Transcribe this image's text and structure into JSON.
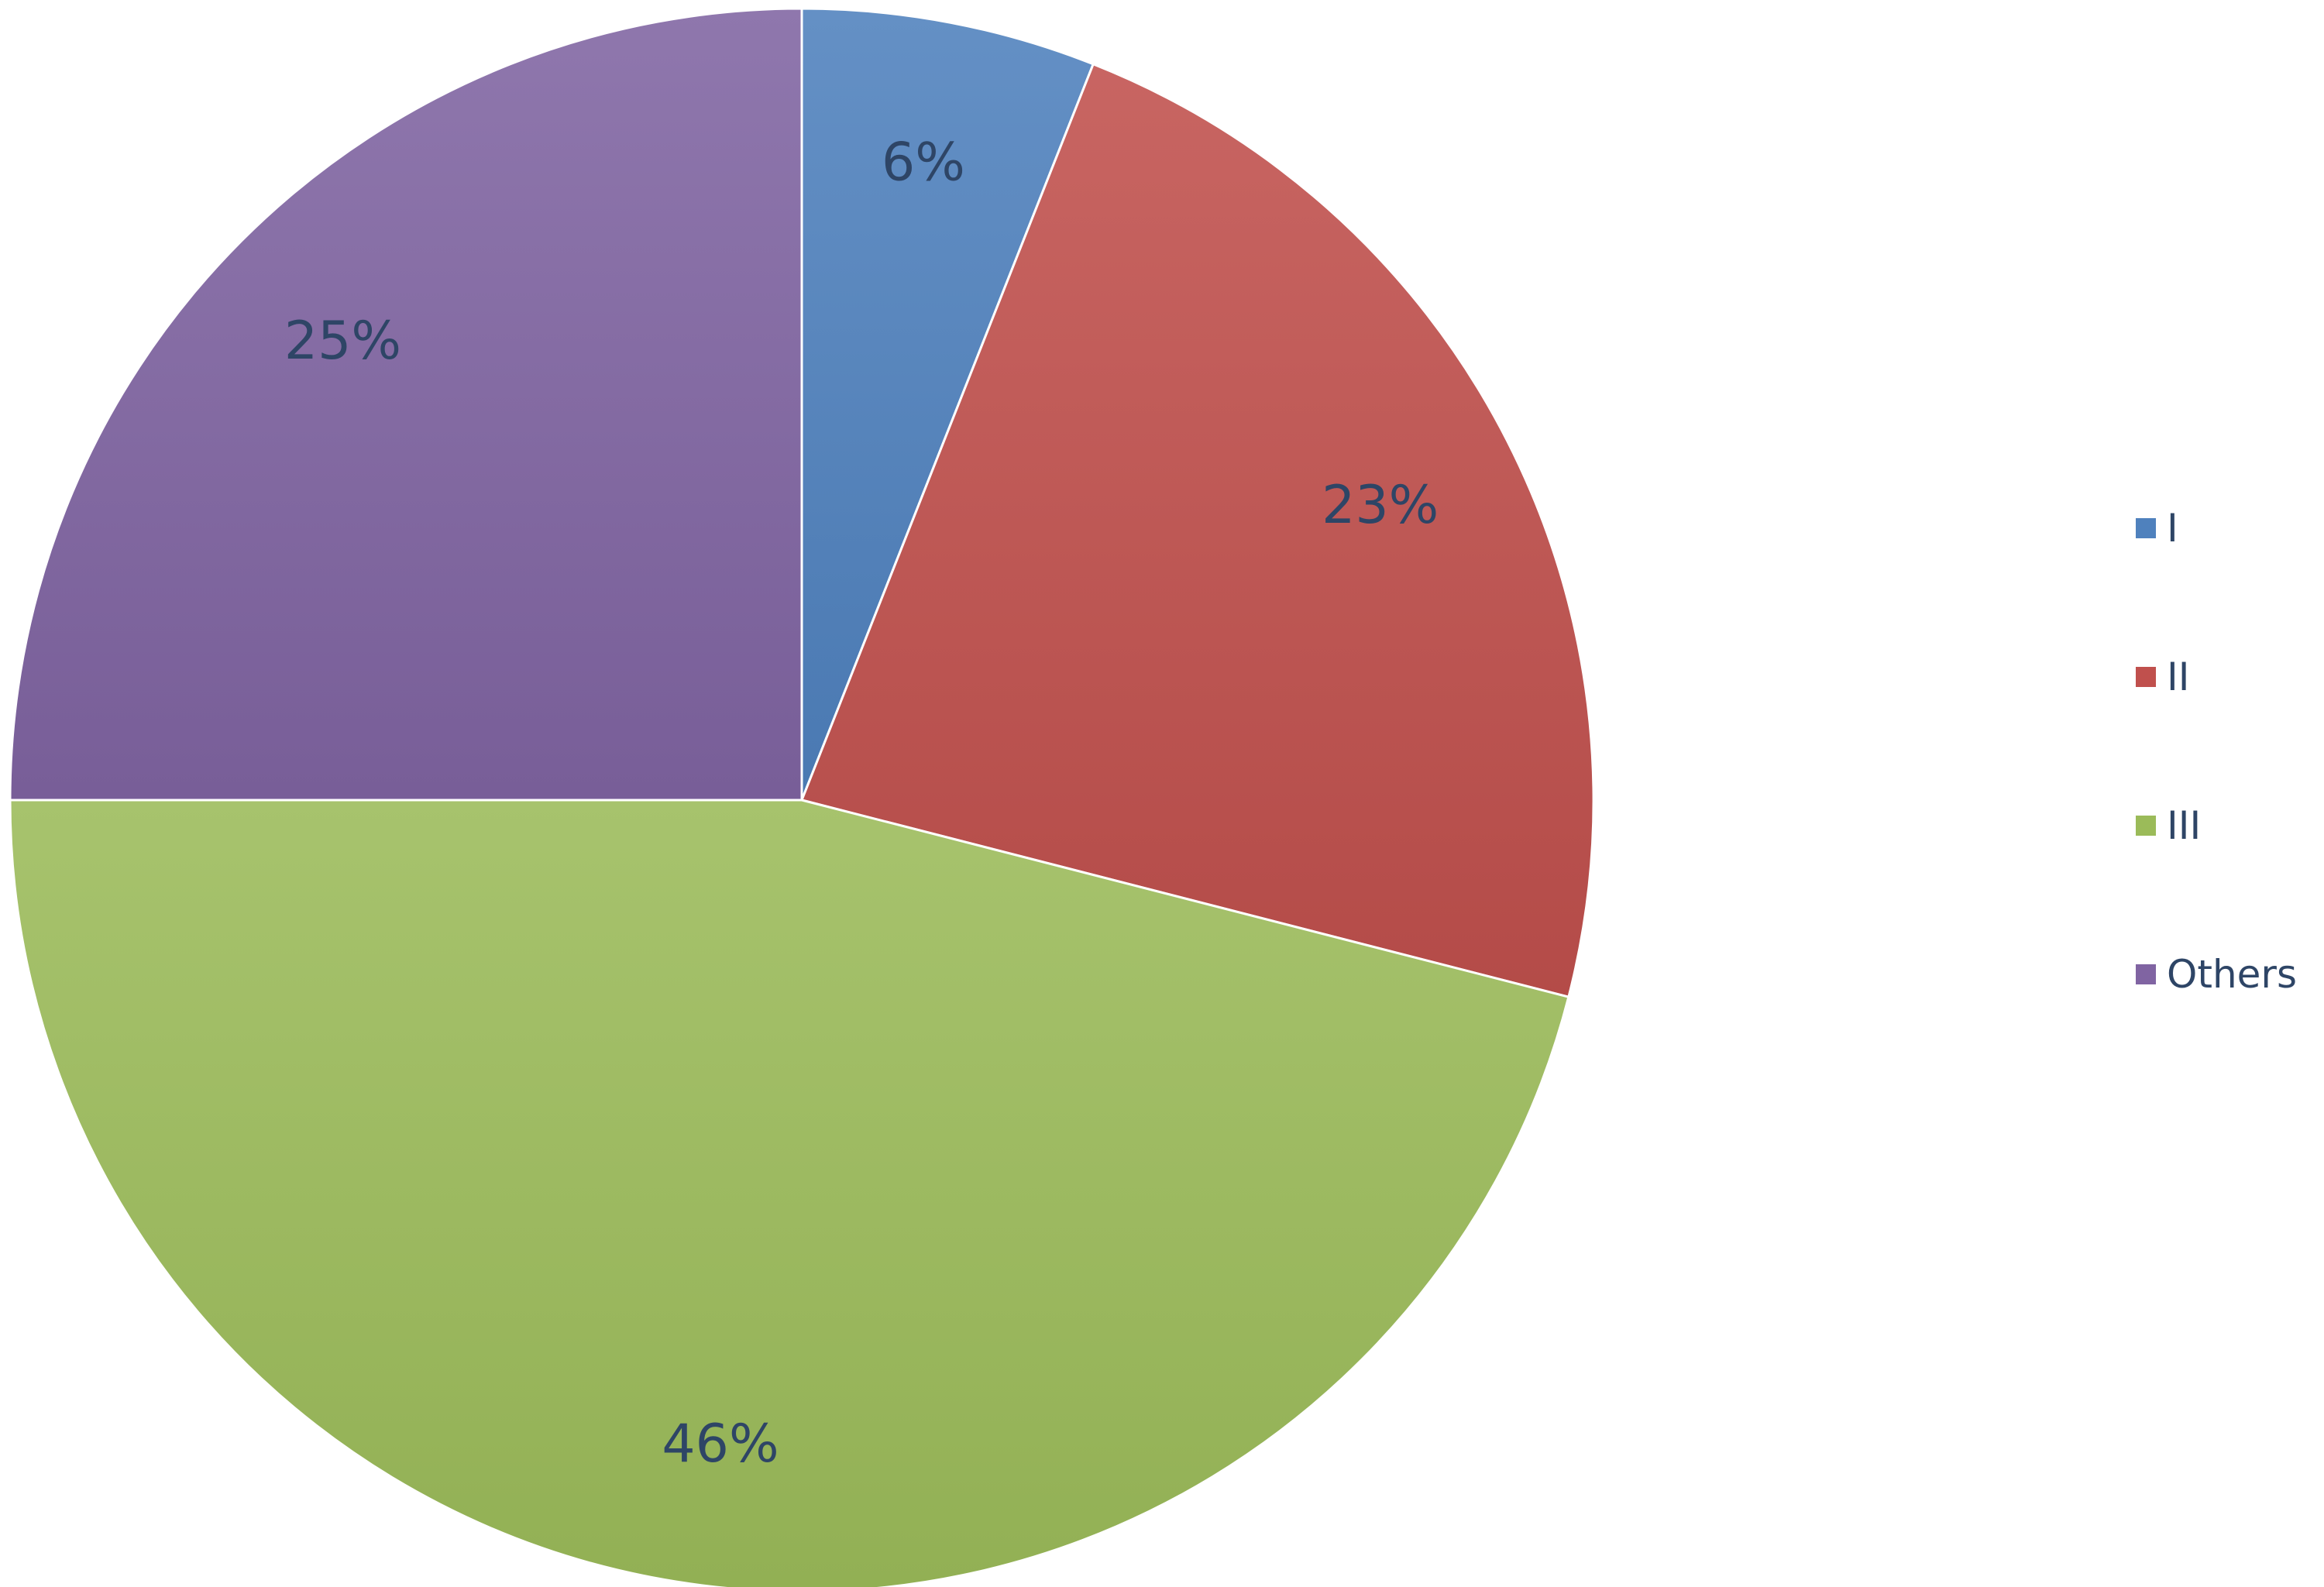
{
  "chart_data": {
    "type": "pie",
    "categories": [
      "I",
      "II",
      "III",
      "Others"
    ],
    "values": [
      6,
      23,
      46,
      25
    ],
    "labels": [
      "6%",
      "23%",
      "46%",
      "25%"
    ],
    "colors": [
      "#4f81bd",
      "#c0504d",
      "#9bbb59",
      "#8064a2"
    ],
    "start_angle_deg": 0,
    "direction": "clockwise",
    "legend": {
      "position": "right",
      "entries": [
        "I",
        "II",
        "III",
        "Others"
      ]
    }
  }
}
